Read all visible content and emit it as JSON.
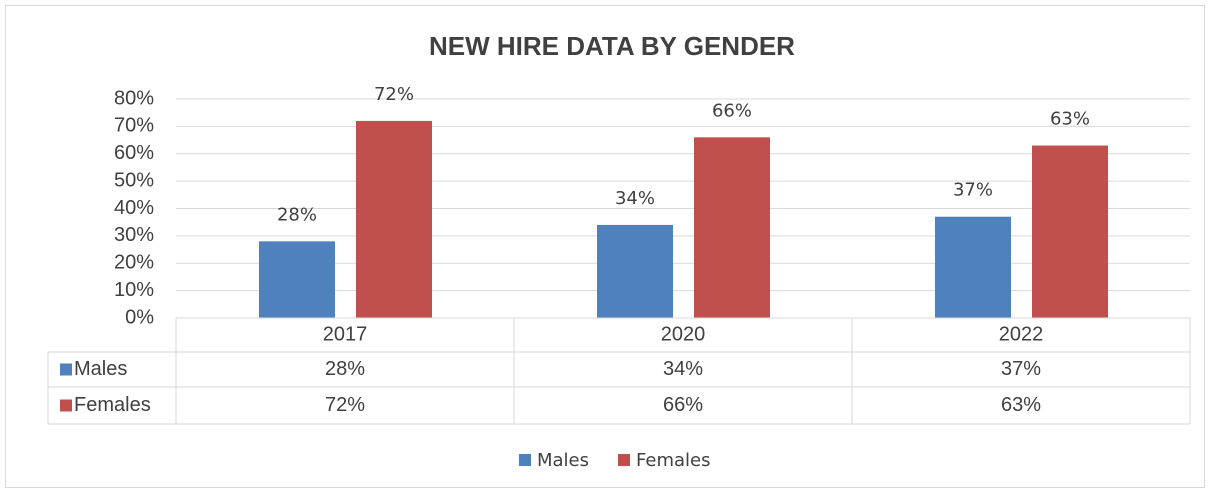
{
  "chart_data": {
    "type": "bar",
    "title": "NEW HIRE DATA BY GENDER",
    "categories": [
      "2017",
      "2020",
      "2022"
    ],
    "series": [
      {
        "name": "Males",
        "color": "#4f81bd",
        "values": [
          28,
          34,
          37
        ],
        "value_labels": [
          "28%",
          "34%",
          "37%"
        ]
      },
      {
        "name": "Females",
        "color": "#c0504d",
        "values": [
          72,
          66,
          63
        ],
        "value_labels": [
          "72%",
          "66%",
          "63%"
        ]
      }
    ],
    "ylim": [
      0,
      80
    ],
    "yticks": [
      {
        "value": 0,
        "label": "0%"
      },
      {
        "value": 10,
        "label": "10%"
      },
      {
        "value": 20,
        "label": "20%"
      },
      {
        "value": 30,
        "label": "30%"
      },
      {
        "value": 40,
        "label": "40%"
      },
      {
        "value": 50,
        "label": "50%"
      },
      {
        "value": 60,
        "label": "60%"
      },
      {
        "value": 70,
        "label": "70%"
      },
      {
        "value": 80,
        "label": "80%"
      }
    ],
    "grid": true,
    "legend": "bottom"
  }
}
